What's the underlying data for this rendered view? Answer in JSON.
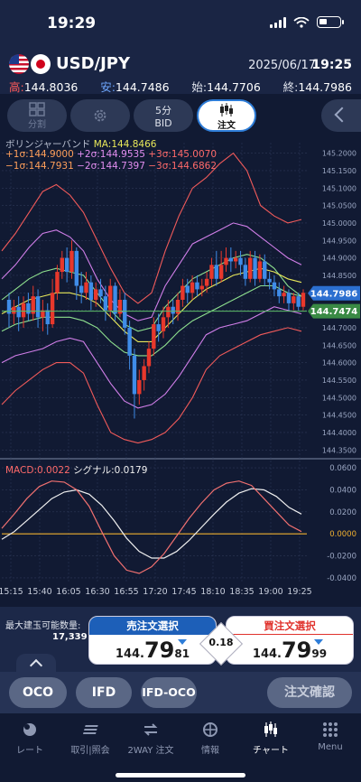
{
  "status": {
    "time": "19:29"
  },
  "header": {
    "pair": "USD/JPY",
    "date": "2025/06/17",
    "time": "19:25",
    "ohlc": {
      "high_label": "高:",
      "high": "144.8036",
      "low_label": "安:",
      "low": "144.7486",
      "open_label": "始:",
      "open": "144.7706",
      "close_label": "終:",
      "close": "144.7986"
    }
  },
  "toolbar": {
    "split_label": "分割",
    "timeframe": "5分",
    "side": "BID",
    "order_label": "注文"
  },
  "legend": {
    "name": "ボリンジャーバンド",
    "ma": "MA:144.8466",
    "p1": "+1σ:144.9000",
    "p2": "+2σ:144.9535",
    "p3": "+3σ:145.0070",
    "m1": "−1σ:144.7931",
    "m2": "−2σ:144.7397",
    "m3": "−3σ:144.6862",
    "macd": "MACD:0.0022",
    "signal": "シグナル:0.0179"
  },
  "colors": {
    "ma": "#e8e85a",
    "s1": "#8ee08e",
    "s2": "#d07ee8",
    "s3": "#f05a5a",
    "up": "#e8382c",
    "down": "#3f8ce8",
    "macd": "#f07070",
    "signal": "#f0f0f0",
    "zero": "#f0b030"
  },
  "chart_data": {
    "type": "candlestick",
    "price_axis": {
      "min": 144.33,
      "max": 145.23,
      "ticks": [
        "145.2000",
        "145.1500",
        "145.1000",
        "145.0500",
        "145.0000",
        "144.9500",
        "144.9000",
        "144.8500",
        "144.8000",
        "144.7500",
        "144.7000",
        "144.6500",
        "144.6000",
        "144.5500",
        "144.5000",
        "144.4500",
        "144.4000",
        "144.3500"
      ],
      "current_bid": "144.7986",
      "reference": "144.7474"
    },
    "time_labels": [
      "15:15",
      "15:40",
      "16:05",
      "16:30",
      "16:55",
      "17:20",
      "17:45",
      "18:10",
      "18:35",
      "19:00",
      "19:25"
    ],
    "candles": [
      [
        144.78,
        144.74,
        144.8,
        144.7
      ],
      [
        144.74,
        144.76,
        144.78,
        144.71
      ],
      [
        144.76,
        144.73,
        144.79,
        144.69
      ],
      [
        144.73,
        144.77,
        144.79,
        144.7
      ],
      [
        144.77,
        144.74,
        144.8,
        144.72
      ],
      [
        144.74,
        144.79,
        144.82,
        144.72
      ],
      [
        144.79,
        144.73,
        144.81,
        144.7
      ],
      [
        144.73,
        144.75,
        144.78,
        144.69
      ],
      [
        144.75,
        144.71,
        144.77,
        144.68
      ],
      [
        144.71,
        144.8,
        144.84,
        144.7
      ],
      [
        144.8,
        144.86,
        144.88,
        144.78
      ],
      [
        144.86,
        144.9,
        144.92,
        144.84
      ],
      [
        144.9,
        144.86,
        144.93,
        144.83
      ],
      [
        144.86,
        144.92,
        144.95,
        144.84
      ],
      [
        144.92,
        144.82,
        144.93,
        144.78
      ],
      [
        144.82,
        144.8,
        144.86,
        144.77
      ],
      [
        144.8,
        144.83,
        144.86,
        144.78
      ],
      [
        144.83,
        144.78,
        144.85,
        144.75
      ],
      [
        144.78,
        144.81,
        144.83,
        144.76
      ],
      [
        144.81,
        144.79,
        144.84,
        144.77
      ],
      [
        144.79,
        144.75,
        144.82,
        144.72
      ],
      [
        144.75,
        144.82,
        144.84,
        144.73
      ],
      [
        144.82,
        144.74,
        144.83,
        144.72
      ],
      [
        144.74,
        144.78,
        144.81,
        144.73
      ],
      [
        144.78,
        144.7,
        144.8,
        144.68
      ],
      [
        144.7,
        144.62,
        144.72,
        144.58
      ],
      [
        144.62,
        144.51,
        144.64,
        144.44
      ],
      [
        144.51,
        144.55,
        144.58,
        144.48
      ],
      [
        144.55,
        144.59,
        144.61,
        144.52
      ],
      [
        144.59,
        144.64,
        144.66,
        144.57
      ],
      [
        144.64,
        144.71,
        144.73,
        144.62
      ],
      [
        144.71,
        144.69,
        144.74,
        144.66
      ],
      [
        144.69,
        144.73,
        144.76,
        144.67
      ],
      [
        144.73,
        144.76,
        144.78,
        144.7
      ],
      [
        144.76,
        144.74,
        144.78,
        144.71
      ],
      [
        144.74,
        144.78,
        144.8,
        144.72
      ],
      [
        144.78,
        144.82,
        144.84,
        144.76
      ],
      [
        144.82,
        144.8,
        144.84,
        144.77
      ],
      [
        144.8,
        144.83,
        144.85,
        144.78
      ],
      [
        144.83,
        144.81,
        144.85,
        144.79
      ],
      [
        144.81,
        144.82,
        144.84,
        144.79
      ],
      [
        144.82,
        144.84,
        144.86,
        144.8
      ],
      [
        144.84,
        144.88,
        144.9,
        144.82
      ],
      [
        144.88,
        144.84,
        144.92,
        144.82
      ],
      [
        144.84,
        144.88,
        144.92,
        144.83
      ],
      [
        144.88,
        144.9,
        144.93,
        144.86
      ],
      [
        144.9,
        144.89,
        144.93,
        144.86
      ],
      [
        144.89,
        144.9,
        144.92,
        144.87
      ],
      [
        144.9,
        144.88,
        144.92,
        144.85
      ],
      [
        144.88,
        144.84,
        144.9,
        144.82
      ],
      [
        144.84,
        144.9,
        144.92,
        144.83
      ],
      [
        144.9,
        144.84,
        144.92,
        144.82
      ],
      [
        144.84,
        144.89,
        144.91,
        144.83
      ],
      [
        144.89,
        144.84,
        144.91,
        144.82
      ],
      [
        144.84,
        144.83,
        144.86,
        144.81
      ],
      [
        144.83,
        144.81,
        144.85,
        144.79
      ],
      [
        144.81,
        144.79,
        144.83,
        144.77
      ],
      [
        144.79,
        144.8,
        144.82,
        144.77
      ],
      [
        144.8,
        144.77,
        144.81,
        144.75
      ],
      [
        144.77,
        144.79,
        144.8,
        144.75
      ],
      [
        144.79,
        144.76,
        144.8,
        144.75
      ],
      [
        144.76,
        144.8,
        144.81,
        144.75
      ]
    ],
    "bands": {
      "ma": [
        144.74,
        144.76,
        144.78,
        144.79,
        144.8,
        144.8,
        144.79,
        144.77,
        144.73,
        144.69,
        144.66,
        144.66,
        144.7,
        144.74,
        144.78,
        144.81,
        144.83,
        144.85,
        144.86,
        144.87,
        144.86,
        144.84,
        144.83
      ],
      "s1": [
        144.78,
        144.81,
        144.84,
        144.86,
        144.87,
        144.86,
        144.85,
        144.8,
        144.75,
        144.71,
        144.69,
        144.7,
        144.76,
        144.8,
        144.84,
        144.86,
        144.88,
        144.9,
        144.91,
        144.9,
        144.87,
        144.82,
        144.79
      ],
      "s2": [
        144.84,
        144.88,
        144.93,
        144.97,
        144.98,
        144.96,
        144.92,
        144.84,
        144.78,
        144.74,
        144.72,
        144.73,
        144.82,
        144.88,
        144.94,
        144.96,
        144.98,
        145.0,
        144.99,
        144.96,
        144.93,
        144.9,
        144.88
      ],
      "s3": [
        144.92,
        144.97,
        145.03,
        145.09,
        145.11,
        145.08,
        145.03,
        144.95,
        144.87,
        144.8,
        144.77,
        144.8,
        144.92,
        145.02,
        145.1,
        145.13,
        145.17,
        145.2,
        145.15,
        145.05,
        145.02,
        145.0,
        145.01
      ],
      "m1": [
        144.69,
        144.71,
        144.72,
        144.73,
        144.73,
        144.73,
        144.72,
        144.7,
        144.66,
        144.63,
        144.62,
        144.62,
        144.65,
        144.69,
        144.72,
        144.74,
        144.76,
        144.78,
        144.8,
        144.82,
        144.82,
        144.8,
        144.79
      ],
      "m2": [
        144.6,
        144.62,
        144.63,
        144.64,
        144.66,
        144.67,
        144.66,
        144.6,
        144.54,
        144.49,
        144.47,
        144.48,
        144.51,
        144.56,
        144.62,
        144.68,
        144.7,
        144.71,
        144.72,
        144.74,
        144.76,
        144.75,
        144.74
      ],
      "m3": [
        144.48,
        144.52,
        144.55,
        144.58,
        144.6,
        144.6,
        144.57,
        144.48,
        144.4,
        144.38,
        144.37,
        144.38,
        144.4,
        144.44,
        144.5,
        144.58,
        144.62,
        144.64,
        144.66,
        144.68,
        144.69,
        144.7,
        144.69
      ]
    },
    "macd_axis": {
      "min": -0.045,
      "max": 0.065,
      "ticks": [
        "0.0600",
        "0.0400",
        "0.0200",
        "0.0000",
        "-0.0200",
        "-0.0400"
      ]
    },
    "macd": [
      0.005,
      0.018,
      0.032,
      0.043,
      0.048,
      0.047,
      0.04,
      0.025,
      0.002,
      -0.02,
      -0.033,
      -0.036,
      -0.03,
      -0.018,
      -0.002,
      0.014,
      0.028,
      0.04,
      0.046,
      0.048,
      0.044,
      0.032,
      0.02,
      0.008,
      0.002
    ],
    "signal": [
      -0.005,
      0.002,
      0.012,
      0.022,
      0.032,
      0.038,
      0.04,
      0.036,
      0.026,
      0.012,
      -0.004,
      -0.016,
      -0.022,
      -0.022,
      -0.016,
      -0.006,
      0.006,
      0.018,
      0.029,
      0.037,
      0.041,
      0.04,
      0.034,
      0.024,
      0.018
    ]
  },
  "order": {
    "max_label": "最大建玉可能数量:",
    "max_value": "17,339",
    "sell_label": "売注文選択",
    "sell_p1": "144.",
    "sell_p2": "79",
    "sell_p3": "81",
    "spread": "0.18",
    "buy_label": "買注文選択",
    "buy_p1": "144.",
    "buy_p2": "79",
    "buy_p3": "99"
  },
  "order_types": {
    "oco": "OCO",
    "ifd": "IFD",
    "ifdoco": "IFD-OCO",
    "confirm": "注文確認"
  },
  "tabs": {
    "rate": "レート",
    "trade": "取引|照会",
    "twoway": "2WAY 注文",
    "info": "情報",
    "chart": "チャート",
    "menu": "Menu"
  }
}
